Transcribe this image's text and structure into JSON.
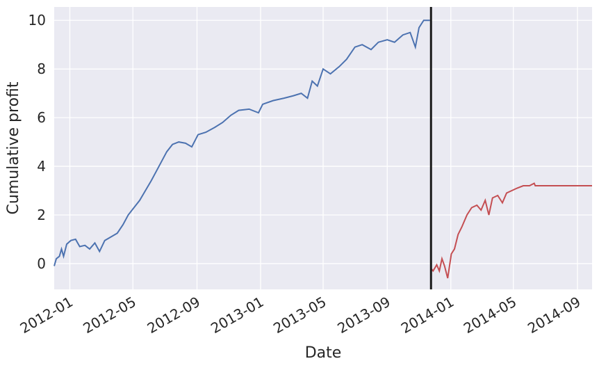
{
  "chart_data": {
    "type": "line",
    "x_label": "Date",
    "y_label": "Cumulative profit",
    "xlim": [
      "2011-12-02",
      "2014-09-29"
    ],
    "xticks": [
      "2012-01",
      "2012-05",
      "2012-09",
      "2013-01",
      "2013-05",
      "2013-09",
      "2014-01",
      "2014-05",
      "2014-09"
    ],
    "ylim": [
      -1.06,
      10.55
    ],
    "yticks": [
      0,
      2,
      4,
      6,
      8,
      10
    ],
    "grid": true,
    "vline": "2013-11-24",
    "vline_color": "#1a1a1a",
    "series": [
      {
        "color": "#4c72b0",
        "x": [
          "2011-12-02",
          "2011-12-06",
          "2011-12-12",
          "2011-12-16",
          "2011-12-20",
          "2011-12-26",
          "2012-01-03",
          "2012-01-12",
          "2012-01-20",
          "2012-01-30",
          "2012-02-08",
          "2012-02-18",
          "2012-02-27",
          "2012-03-08",
          "2012-03-20",
          "2012-04-01",
          "2012-04-12",
          "2012-04-22",
          "2012-05-03",
          "2012-05-14",
          "2012-05-25",
          "2012-06-05",
          "2012-06-15",
          "2012-06-25",
          "2012-07-05",
          "2012-07-16",
          "2012-07-28",
          "2012-08-10",
          "2012-08-22",
          "2012-09-03",
          "2012-09-18",
          "2012-10-05",
          "2012-10-20",
          "2012-11-05",
          "2012-11-20",
          "2012-12-10",
          "2012-12-28",
          "2013-01-05",
          "2013-01-25",
          "2013-02-15",
          "2013-03-05",
          "2013-03-20",
          "2013-04-01",
          "2013-04-10",
          "2013-04-20",
          "2013-05-01",
          "2013-05-15",
          "2013-06-01",
          "2013-06-15",
          "2013-07-01",
          "2013-07-15",
          "2013-08-01",
          "2013-08-15",
          "2013-09-01",
          "2013-09-15",
          "2013-10-01",
          "2013-10-15",
          "2013-10-25",
          "2013-11-01",
          "2013-11-10",
          "2013-11-22"
        ],
        "values": [
          -0.1,
          0.2,
          0.3,
          0.6,
          0.3,
          0.8,
          0.95,
          1.0,
          0.7,
          0.75,
          0.6,
          0.85,
          0.5,
          0.95,
          1.1,
          1.25,
          1.6,
          2.0,
          2.3,
          2.6,
          3.0,
          3.4,
          3.8,
          4.2,
          4.6,
          4.9,
          5.0,
          4.95,
          4.8,
          5.3,
          5.4,
          5.6,
          5.8,
          6.1,
          6.3,
          6.35,
          6.2,
          6.55,
          6.7,
          6.8,
          6.9,
          7.0,
          6.8,
          7.5,
          7.3,
          8.0,
          7.8,
          8.1,
          8.4,
          8.9,
          9.0,
          8.8,
          9.1,
          9.2,
          9.1,
          9.4,
          9.5,
          8.9,
          9.7,
          10.0,
          10.0
        ]
      },
      {
        "color": "#c44e52",
        "x": [
          "2013-11-24",
          "2013-11-28",
          "2013-12-05",
          "2013-12-10",
          "2013-12-15",
          "2013-12-20",
          "2013-12-26",
          "2014-01-02",
          "2014-01-08",
          "2014-01-15",
          "2014-01-22",
          "2014-02-01",
          "2014-02-10",
          "2014-02-20",
          "2014-02-28",
          "2014-03-08",
          "2014-03-15",
          "2014-03-22",
          "2014-04-01",
          "2014-04-10",
          "2014-04-18",
          "2014-04-28",
          "2014-05-08",
          "2014-05-20",
          "2014-06-01",
          "2014-06-10",
          "2014-06-12",
          "2014-09-29"
        ],
        "values": [
          -0.2,
          -0.3,
          -0.05,
          -0.3,
          0.2,
          -0.1,
          -0.6,
          0.4,
          0.6,
          1.2,
          1.5,
          2.0,
          2.3,
          2.4,
          2.2,
          2.6,
          2.0,
          2.7,
          2.8,
          2.5,
          2.9,
          3.0,
          3.1,
          3.2,
          3.2,
          3.3,
          3.2,
          3.2
        ]
      }
    ]
  }
}
